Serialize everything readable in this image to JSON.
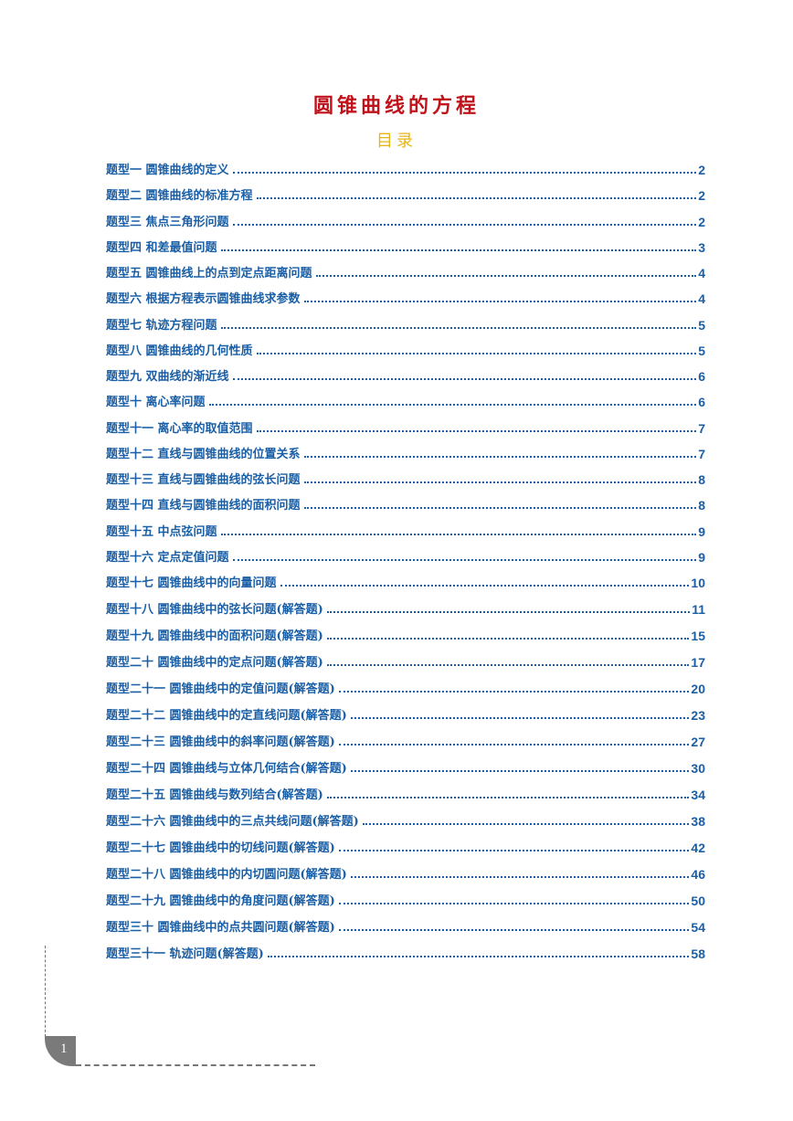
{
  "title": "圆锥曲线的方程",
  "subtitle": "目录",
  "toc": [
    {
      "label": "题型一  圆锥曲线的定义",
      "page": "2"
    },
    {
      "label": "题型二  圆锥曲线的标准方程",
      "page": "2"
    },
    {
      "label": "题型三  焦点三角形问题",
      "page": "2"
    },
    {
      "label": "题型四  和差最值问题",
      "page": "3"
    },
    {
      "label": "题型五  圆锥曲线上的点到定点距离问题",
      "page": "4"
    },
    {
      "label": "题型六  根据方程表示圆锥曲线求参数",
      "page": "4"
    },
    {
      "label": "题型七  轨迹方程问题",
      "page": "5"
    },
    {
      "label": "题型八  圆锥曲线的几何性质",
      "page": "5"
    },
    {
      "label": "题型九  双曲线的渐近线",
      "page": "6"
    },
    {
      "label": "题型十  离心率问题",
      "page": "6"
    },
    {
      "label": "题型十一  离心率的取值范围",
      "page": "7"
    },
    {
      "label": "题型十二  直线与圆锥曲线的位置关系",
      "page": "7"
    },
    {
      "label": "题型十三  直线与圆锥曲线的弦长问题",
      "page": "8"
    },
    {
      "label": "题型十四  直线与圆锥曲线的面积问题",
      "page": "8"
    },
    {
      "label": "题型十五  中点弦问题",
      "page": "9"
    },
    {
      "label": "题型十六  定点定值问题",
      "page": "9"
    },
    {
      "label": "题型十七  圆锥曲线中的向量问题",
      "page": "10"
    },
    {
      "label": "题型十八  圆锥曲线中的弦长问题(解答题)",
      "page": "11"
    },
    {
      "label": "题型十九  圆锥曲线中的面积问题(解答题)",
      "page": "15"
    },
    {
      "label": "题型二十  圆锥曲线中的定点问题(解答题)",
      "page": "17"
    },
    {
      "label": "题型二十一  圆锥曲线中的定值问题(解答题)",
      "page": "20"
    },
    {
      "label": "题型二十二  圆锥曲线中的定直线问题(解答题)",
      "page": "23"
    },
    {
      "label": "题型二十三  圆锥曲线中的斜率问题(解答题)",
      "page": "27"
    },
    {
      "label": "题型二十四  圆锥曲线与立体几何结合(解答题)",
      "page": "30"
    },
    {
      "label": "题型二十五  圆锥曲线与数列结合(解答题)",
      "page": "34"
    },
    {
      "label": "题型二十六  圆锥曲线中的三点共线问题(解答题)",
      "page": "38"
    },
    {
      "label": "题型二十七  圆锥曲线中的切线问题(解答题)",
      "page": "42"
    },
    {
      "label": "题型二十八  圆锥曲线中的内切圆问题(解答题)",
      "page": "46"
    },
    {
      "label": "题型二十九  圆锥曲线中的角度问题(解答题)",
      "page": "50"
    },
    {
      "label": "题型三十  圆锥曲线中的点共圆问题(解答题)",
      "page": "54"
    },
    {
      "label": "题型三十一  轨迹问题(解答题)",
      "page": "58"
    }
  ],
  "page_number": "1",
  "colors": {
    "title": "#c0121a",
    "subtitle": "#e6b417",
    "toc": "#1a5fa6"
  }
}
